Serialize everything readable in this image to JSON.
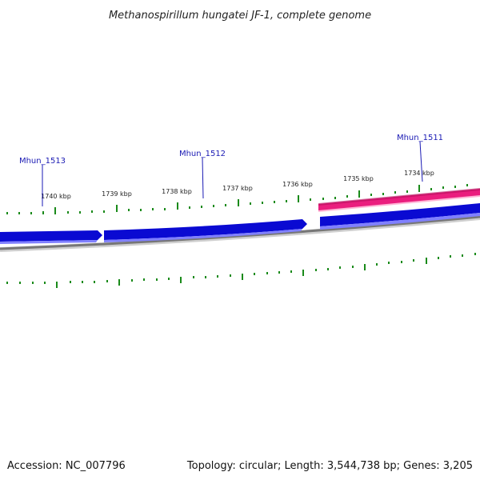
{
  "title": "Methanospirillum hungatei JF-1, complete genome",
  "footer": {
    "accession": "Accession: NC_007796",
    "summary": "Topology: circular; Length: 3,544,738 bp; Genes: 3,205"
  },
  "ticks": [
    {
      "label": "1740 kbp"
    },
    {
      "label": "1739 kbp"
    },
    {
      "label": "1738 kbp"
    },
    {
      "label": "1737 kbp"
    },
    {
      "label": "1736 kbp"
    },
    {
      "label": "1735 kbp"
    },
    {
      "label": "1734 kbp"
    }
  ],
  "genes": [
    {
      "name": "Mhun_1513"
    },
    {
      "name": "Mhun_1512"
    },
    {
      "name": "Mhun_1511"
    }
  ],
  "colors": {
    "gene_forward": "#0a0ad2",
    "gene_reverse": "#ea1e7e",
    "backbone": "#777777",
    "tick": "#1a8a1a",
    "label_line": "#1a1ab4"
  }
}
